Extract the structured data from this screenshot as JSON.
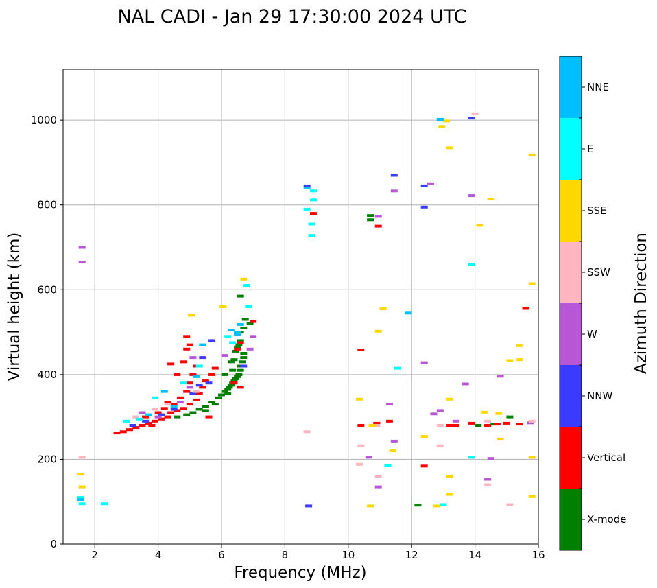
{
  "chart_data": {
    "type": "scatter",
    "title": "NAL CADI - Jan 29 17:30:00 2024 UTC",
    "xlabel": "Frequency (MHz)",
    "ylabel": "Virtual height (km)",
    "xlim": [
      1,
      16
    ],
    "ylim": [
      0,
      1120
    ],
    "xticks": [
      2,
      4,
      6,
      8,
      10,
      12,
      14,
      16
    ],
    "xtick_labels": [
      "2",
      "4",
      "6",
      "8",
      "10",
      "12",
      "14",
      "16"
    ],
    "yticks": [
      0,
      200,
      400,
      600,
      800,
      1000
    ],
    "ytick_labels": [
      "0",
      "200",
      "400",
      "600",
      "800",
      "1000"
    ],
    "grid": true,
    "colorbar": {
      "label": "Azimuth Direction",
      "categories": [
        "X-mode",
        "Vertical",
        "NNW",
        "W",
        "SSW",
        "SSE",
        "E",
        "NNE"
      ],
      "colors": [
        "#008000",
        "#ff0000",
        "#3b3bff",
        "#b757d6",
        "#ffb6c1",
        "#ffd700",
        "#00ffff",
        "#00bfff"
      ]
    },
    "series": [
      {
        "name": "X-mode",
        "points": [
          [
            4.6,
            300
          ],
          [
            4.9,
            305
          ],
          [
            5.1,
            310
          ],
          [
            5.3,
            318
          ],
          [
            5.5,
            325
          ],
          [
            5.7,
            335
          ],
          [
            5.9,
            345
          ],
          [
            6.0,
            352
          ],
          [
            6.1,
            360
          ],
          [
            6.2,
            365
          ],
          [
            6.25,
            370
          ],
          [
            6.3,
            375
          ],
          [
            6.35,
            380
          ],
          [
            6.4,
            385
          ],
          [
            6.45,
            390
          ],
          [
            6.5,
            395
          ],
          [
            6.55,
            400
          ],
          [
            6.6,
            410
          ],
          [
            6.6,
            420
          ],
          [
            6.65,
            430
          ],
          [
            6.7,
            440
          ],
          [
            6.7,
            450
          ],
          [
            6.4,
            435
          ],
          [
            6.3,
            430
          ],
          [
            6.35,
            410
          ],
          [
            6.45,
            455
          ],
          [
            6.5,
            465
          ],
          [
            6.55,
            470
          ],
          [
            6.6,
            480
          ],
          [
            6.6,
            500
          ],
          [
            6.7,
            510
          ],
          [
            6.75,
            530
          ],
          [
            6.6,
            585
          ],
          [
            6.9,
            520
          ],
          [
            5.5,
            315
          ],
          [
            5.8,
            330
          ],
          [
            6.2,
            355
          ],
          [
            6.1,
            400
          ],
          [
            10.7,
            775
          ],
          [
            10.7,
            765
          ],
          [
            12.2,
            92
          ],
          [
            14.1,
            280
          ],
          [
            14.6,
            283
          ],
          [
            15.1,
            300
          ]
        ]
      },
      {
        "name": "Vertical",
        "points": [
          [
            2.7,
            262
          ],
          [
            2.9,
            265
          ],
          [
            3.1,
            270
          ],
          [
            3.3,
            275
          ],
          [
            3.5,
            280
          ],
          [
            3.7,
            285
          ],
          [
            3.9,
            290
          ],
          [
            4.1,
            295
          ],
          [
            4.3,
            300
          ],
          [
            4.4,
            310
          ],
          [
            4.6,
            315
          ],
          [
            4.8,
            320
          ],
          [
            5.0,
            330
          ],
          [
            5.2,
            340
          ],
          [
            5.3,
            355
          ],
          [
            5.4,
            370
          ],
          [
            5.5,
            385
          ],
          [
            4.2,
            320
          ],
          [
            4.5,
            330
          ],
          [
            4.7,
            345
          ],
          [
            4.9,
            360
          ],
          [
            5.0,
            380
          ],
          [
            5.1,
            400
          ],
          [
            5.2,
            420
          ],
          [
            4.6,
            400
          ],
          [
            4.8,
            430
          ],
          [
            4.9,
            460
          ],
          [
            4.9,
            490
          ],
          [
            5.0,
            470
          ],
          [
            4.4,
            425
          ],
          [
            3.8,
            280
          ],
          [
            3.6,
            300
          ],
          [
            4.0,
            310
          ],
          [
            4.3,
            335
          ],
          [
            5.6,
            300
          ],
          [
            5.7,
            400
          ],
          [
            5.8,
            415
          ],
          [
            6.4,
            380
          ],
          [
            6.6,
            370
          ],
          [
            6.5,
            460
          ],
          [
            6.6,
            475
          ],
          [
            7.0,
            525
          ],
          [
            8.9,
            780
          ],
          [
            10.4,
            458
          ],
          [
            10.4,
            280
          ],
          [
            10.85,
            280
          ],
          [
            10.9,
            285
          ],
          [
            10.95,
            750
          ],
          [
            11.3,
            290
          ],
          [
            12.4,
            184
          ],
          [
            13.2,
            280
          ],
          [
            13.4,
            280
          ],
          [
            13.9,
            285
          ],
          [
            14.4,
            280
          ],
          [
            14.7,
            283
          ],
          [
            15.0,
            285
          ],
          [
            15.4,
            283
          ],
          [
            15.6,
            556
          ]
        ]
      },
      {
        "name": "NNW",
        "points": [
          [
            3.2,
            280
          ],
          [
            3.6,
            290
          ],
          [
            4.1,
            305
          ],
          [
            4.5,
            318
          ],
          [
            5.1,
            355
          ],
          [
            5.3,
            375
          ],
          [
            5.6,
            380
          ],
          [
            5.4,
            440
          ],
          [
            5.7,
            480
          ],
          [
            6.7,
            420
          ],
          [
            8.7,
            845
          ],
          [
            8.75,
            90
          ],
          [
            11.45,
            870
          ],
          [
            12.4,
            795
          ],
          [
            12.4,
            845
          ],
          [
            13.9,
            1005
          ]
        ]
      },
      {
        "name": "W",
        "points": [
          [
            1.6,
            700
          ],
          [
            1.6,
            665
          ],
          [
            3.5,
            310
          ],
          [
            4.0,
            300
          ],
          [
            4.7,
            335
          ],
          [
            5.0,
            370
          ],
          [
            5.1,
            440
          ],
          [
            6.1,
            445
          ],
          [
            6.9,
            460
          ],
          [
            7.0,
            490
          ],
          [
            10.65,
            205
          ],
          [
            10.95,
            773
          ],
          [
            10.95,
            135
          ],
          [
            11.45,
            243
          ],
          [
            11.45,
            833
          ],
          [
            11.3,
            330
          ],
          [
            12.4,
            428
          ],
          [
            12.6,
            850
          ],
          [
            12.7,
            307
          ],
          [
            12.9,
            315
          ],
          [
            13.4,
            290
          ],
          [
            13.7,
            378
          ],
          [
            13.9,
            822
          ],
          [
            14.4,
            153
          ],
          [
            14.5,
            202
          ],
          [
            14.8,
            396
          ],
          [
            15.75,
            286
          ]
        ]
      },
      {
        "name": "SSW",
        "points": [
          [
            1.6,
            205
          ],
          [
            3.3,
            300
          ],
          [
            3.9,
            318
          ],
          [
            4.3,
            330
          ],
          [
            5.2,
            360
          ],
          [
            8.7,
            265
          ],
          [
            10.4,
            232
          ],
          [
            10.35,
            188
          ],
          [
            10.95,
            160
          ],
          [
            10.9,
            280
          ],
          [
            12.9,
            232
          ],
          [
            12.9,
            280
          ],
          [
            14.0,
            1015
          ],
          [
            14.4,
            140
          ],
          [
            14.4,
            290
          ],
          [
            15.1,
            93
          ],
          [
            15.8,
            290
          ]
        ]
      },
      {
        "name": "SSE",
        "points": [
          [
            1.55,
            165
          ],
          [
            1.6,
            135
          ],
          [
            6.7,
            625
          ],
          [
            6.05,
            560
          ],
          [
            5.05,
            540
          ],
          [
            10.35,
            342
          ],
          [
            10.7,
            90
          ],
          [
            10.75,
            280
          ],
          [
            10.95,
            502
          ],
          [
            11.1,
            555
          ],
          [
            11.4,
            220
          ],
          [
            12.4,
            254
          ],
          [
            12.8,
            90
          ],
          [
            12.95,
            985
          ],
          [
            13.1,
            998
          ],
          [
            13.2,
            935
          ],
          [
            13.2,
            342
          ],
          [
            13.2,
            160
          ],
          [
            13.2,
            117
          ],
          [
            14.15,
            752
          ],
          [
            14.3,
            311
          ],
          [
            14.5,
            814
          ],
          [
            14.75,
            308
          ],
          [
            14.8,
            248
          ],
          [
            15.1,
            433
          ],
          [
            15.4,
            468
          ],
          [
            15.4,
            435
          ],
          [
            15.8,
            918
          ],
          [
            15.8,
            614
          ],
          [
            15.8,
            205
          ],
          [
            15.8,
            112
          ]
        ]
      },
      {
        "name": "E",
        "points": [
          [
            1.55,
            110
          ],
          [
            1.6,
            95
          ],
          [
            2.3,
            95
          ],
          [
            3.0,
            290
          ],
          [
            3.4,
            295
          ],
          [
            3.9,
            345
          ],
          [
            4.8,
            380
          ],
          [
            5.3,
            420
          ],
          [
            6.2,
            490
          ],
          [
            6.35,
            475
          ],
          [
            6.8,
            610
          ],
          [
            6.85,
            560
          ],
          [
            8.7,
            790
          ],
          [
            8.9,
            833
          ],
          [
            8.9,
            812
          ],
          [
            8.85,
            755
          ],
          [
            8.85,
            728
          ],
          [
            11.25,
            185
          ],
          [
            11.55,
            415
          ],
          [
            12.9,
            1000
          ],
          [
            13.0,
            93
          ],
          [
            13.9,
            660
          ],
          [
            13.9,
            205
          ]
        ]
      },
      {
        "name": "NNE",
        "points": [
          [
            1.55,
            105
          ],
          [
            3.7,
            305
          ],
          [
            4.2,
            360
          ],
          [
            4.5,
            325
          ],
          [
            5.2,
            395
          ],
          [
            5.4,
            470
          ],
          [
            6.3,
            505
          ],
          [
            6.5,
            500
          ],
          [
            6.5,
            495
          ],
          [
            6.6,
            518
          ],
          [
            8.7,
            840
          ],
          [
            11.9,
            545
          ],
          [
            12.9,
            1002
          ]
        ]
      }
    ]
  }
}
